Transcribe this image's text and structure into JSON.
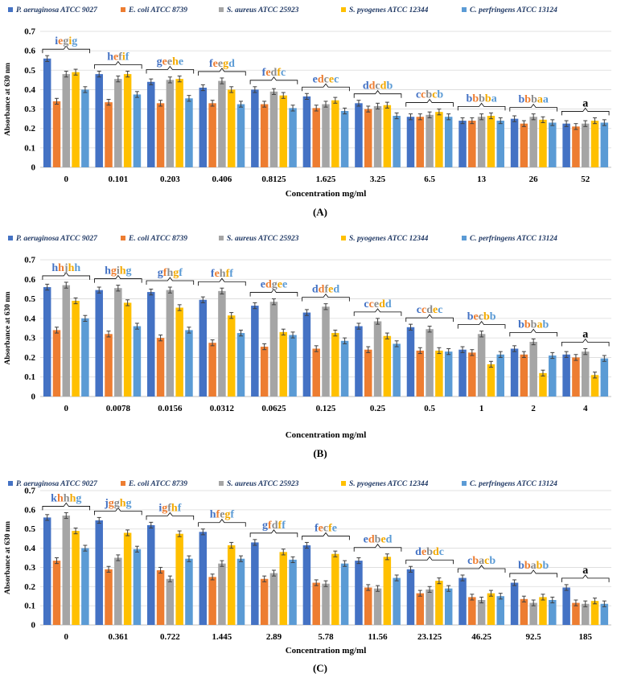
{
  "legend_labels": [
    "P. aeruginosa ATCC 9027",
    "E. coli ATCC 8739",
    "S. aureus ATCC 25923",
    "S. pyogenes ATCC 12344",
    "C. perfringens ATCC 13124"
  ],
  "colors": [
    "#4472C4",
    "#ED7D31",
    "#A5A5A5",
    "#FFC000",
    "#5B9BD5"
  ],
  "letter_colors": [
    "#4472C4",
    "#ED7D31",
    "#8C8C8C",
    "#F2A900",
    "#5B9BD5"
  ],
  "chart_data": [
    {
      "type": "bar",
      "panel_label": "(A)",
      "ylabel": "Absorbance at 630 nm",
      "xlabel": "Concentration mg/ml",
      "ylim": [
        0,
        0.7
      ],
      "yticks": [
        "0",
        "0.1",
        "0.2",
        "0.3",
        "0.4",
        "0.5",
        "0.6",
        "0.7"
      ],
      "categories": [
        "0",
        "0.101",
        "0.203",
        "0.406",
        "0.8125",
        "1.625",
        "3.25",
        "6.5",
        "13",
        "26",
        "52"
      ],
      "letters": [
        "iegig",
        "hefif",
        "geehe",
        "feegd",
        "fedfc",
        "edcec",
        "ddcdb",
        "ccbcb",
        "bbbba",
        "bbbaa",
        "a"
      ],
      "series": [
        {
          "name": "P. aeruginosa ATCC 9027",
          "values": [
            0.56,
            0.48,
            0.44,
            0.41,
            0.4,
            0.365,
            0.33,
            0.26,
            0.24,
            0.25,
            0.225
          ]
        },
        {
          "name": "E. coli ATCC 8739",
          "values": [
            0.34,
            0.335,
            0.33,
            0.33,
            0.325,
            0.305,
            0.3,
            0.26,
            0.24,
            0.225,
            0.21
          ]
        },
        {
          "name": "S. aureus ATCC 25923",
          "values": [
            0.48,
            0.455,
            0.45,
            0.445,
            0.39,
            0.325,
            0.315,
            0.27,
            0.26,
            0.26,
            0.225
          ]
        },
        {
          "name": "S. pyogenes ATCC 12344",
          "values": [
            0.49,
            0.48,
            0.455,
            0.4,
            0.37,
            0.345,
            0.32,
            0.285,
            0.265,
            0.245,
            0.24
          ]
        },
        {
          "name": "C. perfringens ATCC 13124",
          "values": [
            0.4,
            0.375,
            0.355,
            0.325,
            0.305,
            0.29,
            0.265,
            0.26,
            0.24,
            0.23,
            0.23
          ]
        }
      ]
    },
    {
      "type": "bar",
      "panel_label": "(B)",
      "ylabel": "Absorbance at 630 nm",
      "xlabel": "Concentration mg/ml",
      "ylim": [
        0,
        0.7
      ],
      "yticks": [
        "0",
        "0.1",
        "0.2",
        "0.3",
        "0.4",
        "0.5",
        "0.6",
        "0.7"
      ],
      "categories": [
        "0",
        "0.0078",
        "0.0156",
        "0.0312",
        "0.0625",
        "0.125",
        "0.25",
        "0.5",
        "1",
        "2",
        "4"
      ],
      "letters": [
        "hhjhh",
        "hgihg",
        "gfhgf",
        "fehff",
        "edgee",
        "ddfed",
        "ccedd",
        "ccdec",
        "becbb",
        "bbbab",
        "a"
      ],
      "series": [
        {
          "name": "P. aeruginosa ATCC 9027",
          "values": [
            0.56,
            0.545,
            0.535,
            0.495,
            0.465,
            0.43,
            0.36,
            0.355,
            0.24,
            0.245,
            0.215
          ]
        },
        {
          "name": "E. coli ATCC 8739",
          "values": [
            0.34,
            0.32,
            0.3,
            0.275,
            0.255,
            0.245,
            0.24,
            0.235,
            0.225,
            0.215,
            0.2
          ]
        },
        {
          "name": "S. aureus ATCC 25923",
          "values": [
            0.57,
            0.555,
            0.545,
            0.54,
            0.485,
            0.46,
            0.385,
            0.345,
            0.32,
            0.28,
            0.23
          ]
        },
        {
          "name": "S. pyogenes ATCC 12344",
          "values": [
            0.49,
            0.48,
            0.455,
            0.415,
            0.33,
            0.325,
            0.31,
            0.235,
            0.165,
            0.12,
            0.11
          ]
        },
        {
          "name": "C. perfringens ATCC 13124",
          "values": [
            0.4,
            0.36,
            0.34,
            0.325,
            0.315,
            0.285,
            0.27,
            0.23,
            0.215,
            0.21,
            0.195
          ]
        }
      ]
    },
    {
      "type": "bar",
      "panel_label": "(C)",
      "ylabel": "Absorbance at 630 nm",
      "xlabel": "Concentration mg/ml",
      "ylim": [
        0,
        0.7
      ],
      "yticks": [
        "0",
        "0.1",
        "0.2",
        "0.3",
        "0.4",
        "0.5",
        "0.6",
        "0.7"
      ],
      "categories": [
        "0",
        "0.361",
        "0.722",
        "1.445",
        "2.89",
        "5.78",
        "11.56",
        "23.125",
        "46.25",
        "92.5",
        "185"
      ],
      "letters": [
        "khhhg",
        "jgghg",
        "igfhf",
        "hfegf",
        "gfdff",
        "fecfe",
        "edbed",
        "debdc",
        "cbacb",
        "bbabb",
        "a"
      ],
      "series": [
        {
          "name": "P. aeruginosa ATCC 9027",
          "values": [
            0.56,
            0.545,
            0.52,
            0.485,
            0.43,
            0.415,
            0.335,
            0.29,
            0.245,
            0.22,
            0.195
          ]
        },
        {
          "name": "E. coli ATCC 8739",
          "values": [
            0.335,
            0.29,
            0.285,
            0.25,
            0.24,
            0.22,
            0.195,
            0.165,
            0.145,
            0.135,
            0.115
          ]
        },
        {
          "name": "S. aureus ATCC 25923",
          "values": [
            0.57,
            0.35,
            0.24,
            0.32,
            0.27,
            0.215,
            0.19,
            0.185,
            0.13,
            0.115,
            0.11
          ]
        },
        {
          "name": "S. pyogenes ATCC 12344",
          "values": [
            0.49,
            0.48,
            0.475,
            0.415,
            0.38,
            0.37,
            0.355,
            0.23,
            0.165,
            0.145,
            0.125
          ]
        },
        {
          "name": "C. perfringens ATCC 13124",
          "values": [
            0.4,
            0.395,
            0.345,
            0.345,
            0.34,
            0.32,
            0.245,
            0.19,
            0.15,
            0.13,
            0.11
          ]
        }
      ]
    }
  ]
}
